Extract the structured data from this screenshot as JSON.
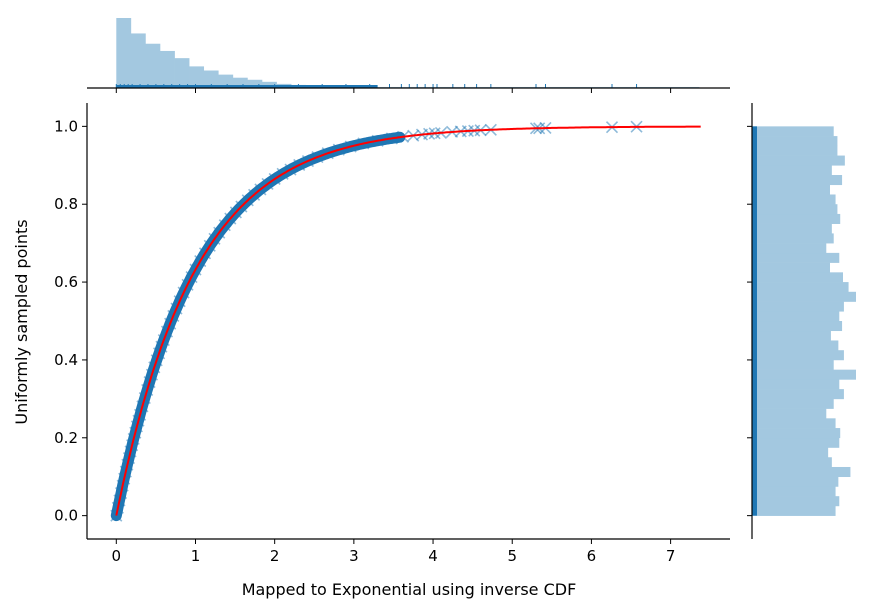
{
  "chart_data": {
    "type": "scatter",
    "title": "",
    "xlabel": "Mapped to Exponential using inverse CDF",
    "ylabel": "Uniformly sampled points",
    "xlim": [
      -0.37,
      7.75
    ],
    "ylim": [
      -0.06,
      1.06
    ],
    "xticks": [
      "0",
      "1",
      "2",
      "3",
      "4",
      "5",
      "6",
      "7"
    ],
    "xtick_values": [
      0,
      1,
      2,
      3,
      4,
      5,
      6,
      7
    ],
    "yticks": [
      "0.0",
      "0.2",
      "0.4",
      "0.6",
      "0.8",
      "1.0"
    ],
    "ytick_values": [
      0.0,
      0.2,
      0.4,
      0.6,
      0.8,
      1.0
    ],
    "grid": false,
    "legend": "none",
    "series": [
      {
        "type": "scatter",
        "marker": "x",
        "color": "#1f77b4",
        "alpha": 0.5,
        "points": [
          [
            0.0,
            0.0
          ],
          [
            0.02,
            0.02
          ],
          [
            0.04,
            0.039
          ],
          [
            0.06,
            0.058
          ],
          [
            0.08,
            0.077
          ],
          [
            0.1,
            0.095
          ],
          [
            0.12,
            0.113
          ],
          [
            0.14,
            0.131
          ],
          [
            0.16,
            0.148
          ],
          [
            0.18,
            0.165
          ],
          [
            0.2,
            0.181
          ],
          [
            0.22,
            0.197
          ],
          [
            0.24,
            0.213
          ],
          [
            0.26,
            0.229
          ],
          [
            0.28,
            0.244
          ],
          [
            0.3,
            0.259
          ],
          [
            0.33,
            0.281
          ],
          [
            0.36,
            0.302
          ],
          [
            0.39,
            0.323
          ],
          [
            0.42,
            0.343
          ],
          [
            0.45,
            0.362
          ],
          [
            0.48,
            0.381
          ],
          [
            0.51,
            0.399
          ],
          [
            0.54,
            0.417
          ],
          [
            0.57,
            0.434
          ],
          [
            0.6,
            0.451
          ],
          [
            0.64,
            0.473
          ],
          [
            0.68,
            0.493
          ],
          [
            0.72,
            0.513
          ],
          [
            0.76,
            0.532
          ],
          [
            0.8,
            0.551
          ],
          [
            0.85,
            0.573
          ],
          [
            0.9,
            0.593
          ],
          [
            0.95,
            0.613
          ],
          [
            1.0,
            0.632
          ],
          [
            1.06,
            0.654
          ],
          [
            1.12,
            0.674
          ],
          [
            1.18,
            0.693
          ],
          [
            1.24,
            0.711
          ],
          [
            1.3,
            0.727
          ],
          [
            1.37,
            0.746
          ],
          [
            1.44,
            0.763
          ],
          [
            1.51,
            0.779
          ],
          [
            1.58,
            0.794
          ],
          [
            1.66,
            0.81
          ],
          [
            1.74,
            0.824
          ],
          [
            1.82,
            0.838
          ],
          [
            1.91,
            0.852
          ],
          [
            2.0,
            0.865
          ],
          [
            2.1,
            0.878
          ],
          [
            2.2,
            0.889
          ],
          [
            2.31,
            0.901
          ],
          [
            2.42,
            0.911
          ],
          [
            2.54,
            0.921
          ],
          [
            2.67,
            0.931
          ],
          [
            2.81,
            0.94
          ],
          [
            2.96,
            0.948
          ],
          [
            3.12,
            0.956
          ],
          [
            3.3,
            0.963
          ],
          [
            3.48,
            0.969
          ],
          [
            3.62,
            0.973
          ],
          [
            3.75,
            0.976
          ],
          [
            3.86,
            0.979
          ],
          [
            3.95,
            0.981
          ],
          [
            4.02,
            0.982
          ],
          [
            4.1,
            0.983
          ],
          [
            4.24,
            0.986
          ],
          [
            4.35,
            0.987
          ],
          [
            4.44,
            0.988
          ],
          [
            4.52,
            0.989
          ],
          [
            4.6,
            0.99
          ],
          [
            4.73,
            0.991
          ],
          [
            5.3,
            0.995
          ],
          [
            5.34,
            0.995
          ],
          [
            5.42,
            0.996
          ],
          [
            6.26,
            0.998
          ],
          [
            6.57,
            0.999
          ]
        ]
      },
      {
        "type": "line",
        "color": "#ff0000",
        "function": "1 - exp(-x)",
        "x_range": [
          0,
          7.38
        ]
      }
    ],
    "marginal_x": {
      "type": "histogram",
      "color": "#a3c8e0",
      "bin_width": 0.184,
      "start": 0,
      "counts": [
        68,
        53,
        43,
        36,
        29,
        21,
        17,
        13,
        10,
        8,
        6,
        4,
        3,
        2,
        1.6,
        1.4,
        1.2,
        1,
        1,
        1,
        1,
        1,
        1,
        1,
        1,
        1,
        1,
        1,
        1,
        1,
        1,
        1,
        1,
        1,
        1,
        1,
        1,
        1,
        1,
        1
      ]
    },
    "marginal_y": {
      "type": "histogram",
      "color": "#a3c8e0",
      "bin_width": 0.025,
      "start": 0,
      "counts": [
        90,
        94,
        90,
        93,
        106,
        86,
        82,
        94,
        95,
        90,
        80,
        88,
        99,
        94,
        112,
        88,
        99,
        93,
        85,
        97,
        94,
        99,
        112,
        104,
        98,
        84,
        94,
        80,
        88,
        86,
        95,
        92,
        90,
        84,
        97,
        86,
        100,
        92,
        92,
        88
      ]
    }
  }
}
